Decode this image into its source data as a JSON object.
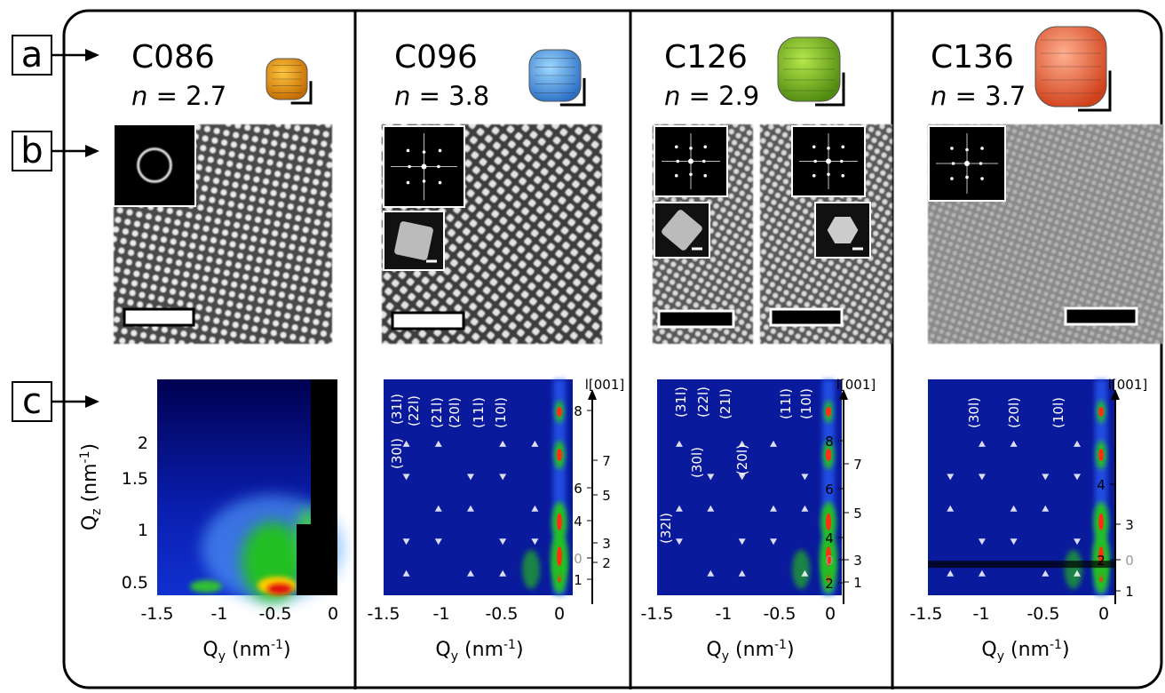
{
  "row_labels": [
    "a",
    "b",
    "c"
  ],
  "panels": [
    {
      "name": "C086",
      "n_symbol": "n",
      "n_value": " = 2.7",
      "map": {
        "xticks": [
          "-1.5",
          "-1",
          "-0.5",
          "0"
        ],
        "yticks": [
          "2",
          "1.5",
          "1",
          "0.5"
        ],
        "ylabel": {
          "base": "Q",
          "sub": "z",
          "unit": " (nm",
          "exp": "-1",
          "end": ")"
        },
        "xlabel": {
          "base": "Q",
          "sub": "y",
          "unit": " (nm",
          "exp": "-1",
          "end": ")"
        }
      }
    },
    {
      "name": "C096",
      "n_symbol": "n",
      "n_value": " = 3.8",
      "map": {
        "xticks": [
          "-1.5",
          "-1",
          "-0.5",
          "0"
        ],
        "axis_label": "l[001]",
        "l_ticks": [
          "8",
          "7",
          "6",
          "5",
          "4",
          "3",
          "0",
          "2",
          "1"
        ],
        "peaks": [
          "(30l)",
          "(31l)",
          "(22l)",
          "(21l)",
          "(20l)",
          "(11l)",
          "(10l)"
        ],
        "xlabel": {
          "base": "Q",
          "sub": "y",
          "unit": " (nm",
          "exp": "-1",
          "end": ")"
        }
      }
    },
    {
      "name": "C126",
      "n_symbol": "n",
      "n_value": " = 2.9",
      "map": {
        "xticks": [
          "-1.5",
          "-1",
          "-0.5",
          "0"
        ],
        "axis_label": "l[001]",
        "l_ticks": [
          "8",
          "7",
          "6",
          "5",
          "4",
          "3",
          "0",
          "2",
          "1"
        ],
        "peaks": [
          "(32l)",
          "(31l)",
          "(30l)",
          "(22l)",
          "(21l)",
          "(20l)",
          "(11l)",
          "(10l)"
        ],
        "xlabel": {
          "base": "Q",
          "sub": "y",
          "unit": " (nm",
          "exp": "-1",
          "end": ")"
        }
      }
    },
    {
      "name": "C136",
      "n_symbol": "n",
      "n_value": " = 3.7",
      "map": {
        "xticks": [
          "-1.5",
          "-1",
          "-0.5",
          "0"
        ],
        "axis_label": "l[001]",
        "l_ticks": [
          "4",
          "3",
          "2",
          "0",
          "1"
        ],
        "peaks": [
          "(30l)",
          "(20l)",
          "(10l)"
        ],
        "xlabel": {
          "base": "Q",
          "sub": "y",
          "unit": " (nm",
          "exp": "-1",
          "end": ")"
        }
      }
    }
  ]
}
